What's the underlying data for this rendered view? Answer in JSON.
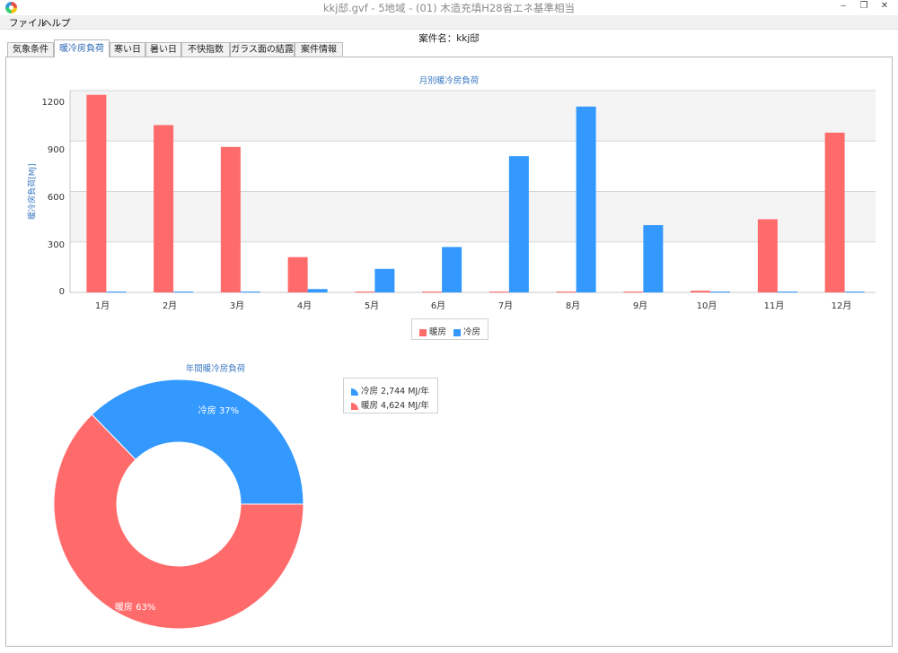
{
  "window": {
    "title": "kkj邸.gvf - 5地域 - (01) 木造充填H28省エネ基準相当",
    "controls": {
      "minimize": "‒",
      "maximize": "❐",
      "close": "✕"
    }
  },
  "menu": [
    "ファイル",
    "ヘルプ"
  ],
  "case_name": "案件名：kkj邸",
  "tabs": [
    {
      "label": "気象条件",
      "active": false
    },
    {
      "label": "暖冷房負荷",
      "active": true
    },
    {
      "label": "寒い日",
      "active": false
    },
    {
      "label": "暑い日",
      "active": false
    },
    {
      "label": "不快指数",
      "active": false
    },
    {
      "label": "ガラス面の結露",
      "active": false
    },
    {
      "label": "案件情報",
      "active": false
    }
  ],
  "colors": {
    "heating": "#ff6b6b",
    "cooling": "#3399ff",
    "accent": "#3a78c4"
  },
  "chart_data": [
    {
      "type": "bar",
      "title": "月別暖冷房負荷",
      "ylabel": "暖冷房負荷[MJ]",
      "xlabel": "",
      "ylim": [
        0,
        1200
      ],
      "yticks": [
        "0",
        "300",
        "600",
        "900",
        "1200"
      ],
      "categories": [
        "1月",
        "2月",
        "3月",
        "4月",
        "5月",
        "6月",
        "7月",
        "8月",
        "9月",
        "10月",
        "11月",
        "12月"
      ],
      "series": [
        {
          "name": "暖房",
          "color": "#ff6b6b",
          "values": [
            1175,
            995,
            865,
            210,
            0,
            0,
            0,
            0,
            0,
            10,
            435,
            950
          ]
        },
        {
          "name": "冷房",
          "color": "#3399ff",
          "values": [
            0,
            0,
            0,
            20,
            140,
            270,
            810,
            1105,
            400,
            0,
            0,
            0
          ]
        }
      ],
      "legend": [
        "暖房",
        "冷房"
      ],
      "legend_position": "bottom-center",
      "grid": true
    },
    {
      "type": "pie",
      "title": "年間暖冷房負荷",
      "slices": [
        {
          "name": "冷房",
          "value": 2744,
          "label": "冷房 37%",
          "color": "#3399ff"
        },
        {
          "name": "暖房",
          "value": 4624,
          "label": "暖房 63%",
          "color": "#ff6b6b"
        }
      ],
      "legend": [
        "冷房 2,744 MJ/年",
        "暖房 4,624 MJ/年"
      ],
      "legend_position": "right"
    }
  ]
}
